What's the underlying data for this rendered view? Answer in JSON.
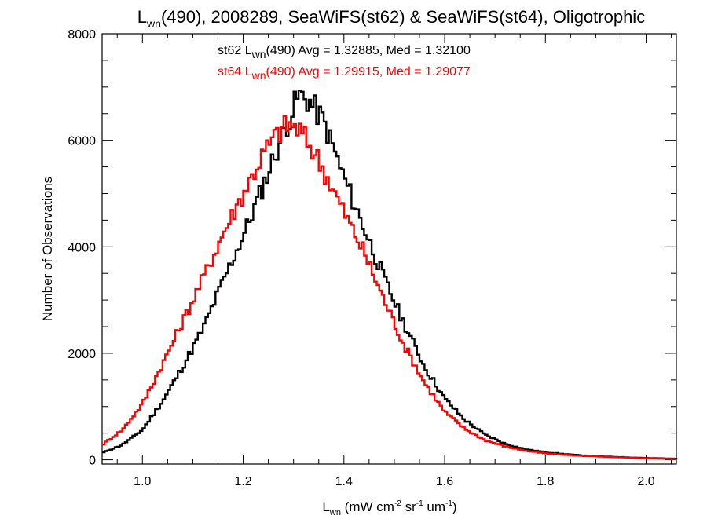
{
  "chart_data": {
    "type": "line",
    "title": {
      "main": "L",
      "sub": "wn",
      "rest": "(490), 2008289, SeaWiFS(st62) & SeaWiFS(st64), Oligotrophic"
    },
    "xlabel": {
      "main": "L",
      "sub": "wn",
      "rest": " (mW cm",
      "sup1": "-2",
      "mid": " sr",
      "sup2": "-1",
      "mid2": " um",
      "sup3": "-1",
      "end": ")"
    },
    "ylabel": "Number of Observations",
    "xlim": [
      0.92,
      2.06
    ],
    "ylim": [
      -80,
      8000
    ],
    "xticks": [
      1.0,
      1.2,
      1.4,
      1.6,
      1.8,
      2.0
    ],
    "xtick_labels": [
      "1.0",
      "1.2",
      "1.4",
      "1.6",
      "1.8",
      "2.0"
    ],
    "yticks": [
      0,
      2000,
      4000,
      6000,
      8000
    ],
    "ytick_labels": [
      "0",
      "2000",
      "4000",
      "6000",
      "8000"
    ],
    "grid": false,
    "legend_position": "top-center",
    "series": [
      {
        "legend": {
          "pre": "st62 L",
          "sub": "wn",
          "post": "(490) Avg = 1.32885, Med = 1.32100"
        },
        "color": "#000000",
        "x": [
          0.92,
          0.96,
          1.0,
          1.04,
          1.08,
          1.12,
          1.16,
          1.2,
          1.24,
          1.27,
          1.3,
          1.31,
          1.33,
          1.36,
          1.4,
          1.44,
          1.48,
          1.52,
          1.56,
          1.6,
          1.64,
          1.68,
          1.72,
          1.76,
          1.8,
          1.86,
          1.92,
          1.98,
          2.06
        ],
        "y": [
          130,
          280,
          560,
          1100,
          1750,
          2450,
          3350,
          4200,
          5150,
          5900,
          6600,
          6850,
          6750,
          6350,
          5300,
          4350,
          3400,
          2550,
          1750,
          1150,
          750,
          470,
          300,
          200,
          140,
          90,
          60,
          40,
          20
        ]
      },
      {
        "legend": {
          "pre": "st64 L",
          "sub": "wn",
          "post": "(490) Avg = 1.29915, Med = 1.29077"
        },
        "color": "#ff0000",
        "x": [
          0.92,
          0.96,
          1.0,
          1.04,
          1.08,
          1.12,
          1.16,
          1.2,
          1.24,
          1.27,
          1.29,
          1.31,
          1.34,
          1.37,
          1.4,
          1.44,
          1.48,
          1.52,
          1.56,
          1.6,
          1.64,
          1.68,
          1.72,
          1.76,
          1.8,
          1.86,
          1.92,
          1.98,
          2.06
        ],
        "y": [
          280,
          560,
          1050,
          1800,
          2600,
          3400,
          4250,
          5000,
          5750,
          6150,
          6300,
          6200,
          5800,
          5250,
          4650,
          3900,
          3000,
          2150,
          1450,
          900,
          580,
          370,
          250,
          170,
          120,
          80,
          55,
          35,
          15
        ]
      }
    ]
  }
}
